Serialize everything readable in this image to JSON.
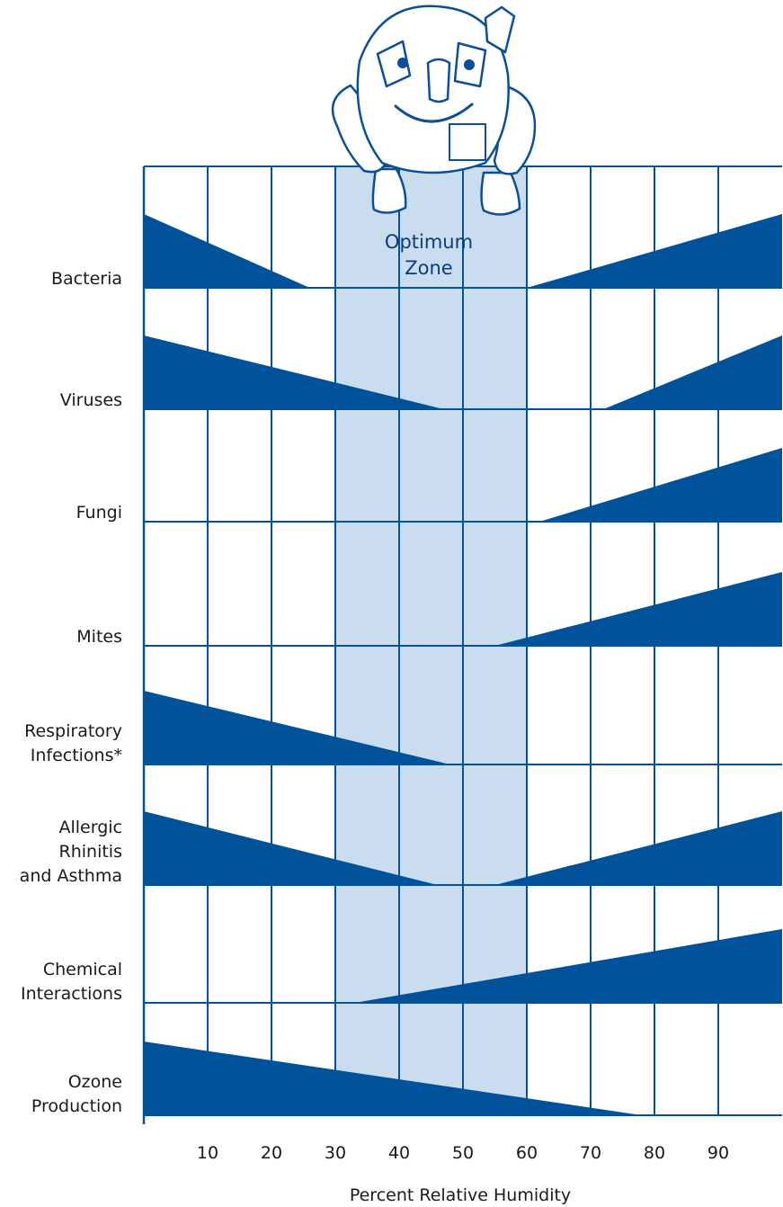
{
  "chart_data": {
    "type": "area",
    "title": "",
    "xlabel": "Percent Relative Humidity",
    "ylabel": "",
    "xlim": [
      0,
      100
    ],
    "x_ticks": [
      10,
      20,
      30,
      40,
      50,
      60,
      70,
      80,
      90
    ],
    "optimum_zone": {
      "label_line1": "Optimum",
      "label_line2": "Zone",
      "range": [
        30,
        60
      ]
    },
    "grid": true,
    "colors": {
      "fill": "#00529b",
      "zone": "#c9ddef",
      "grid": "#00529b"
    },
    "mascot": "smiling-house-icon",
    "rows": [
      {
        "label": [
          "Bacteria"
        ],
        "left": [
          [
            0,
            1.0
          ],
          [
            26,
            0
          ]
        ],
        "right": [
          [
            60,
            0
          ],
          [
            100,
            1.0
          ]
        ]
      },
      {
        "label": [
          "Viruses"
        ],
        "left": [
          [
            0,
            1.0
          ],
          [
            47,
            0
          ]
        ],
        "right": [
          [
            72,
            0
          ],
          [
            100,
            1.0
          ]
        ]
      },
      {
        "label": [
          "Fungi"
        ],
        "left": null,
        "right": [
          [
            62,
            0
          ],
          [
            100,
            1.0
          ]
        ]
      },
      {
        "label": [
          "Mites"
        ],
        "left": null,
        "right": [
          [
            55,
            0
          ],
          [
            100,
            1.0
          ]
        ]
      },
      {
        "label": [
          "Respiratory",
          "Infections*"
        ],
        "left": [
          [
            0,
            1.0
          ],
          [
            48,
            0
          ]
        ],
        "right": null
      },
      {
        "label": [
          "Allergic",
          "Rhinitis",
          "and Asthma"
        ],
        "left": [
          [
            0,
            1.0
          ],
          [
            46,
            0
          ]
        ],
        "right": [
          [
            55,
            0
          ],
          [
            100,
            1.0
          ]
        ]
      },
      {
        "label": [
          "Chemical",
          "Interactions"
        ],
        "left": null,
        "right": [
          [
            33,
            0
          ],
          [
            100,
            1.0
          ]
        ]
      },
      {
        "label": [
          "Ozone",
          "Production"
        ],
        "left": [
          [
            0,
            1.0
          ],
          [
            78,
            0
          ]
        ],
        "right": null
      }
    ]
  }
}
